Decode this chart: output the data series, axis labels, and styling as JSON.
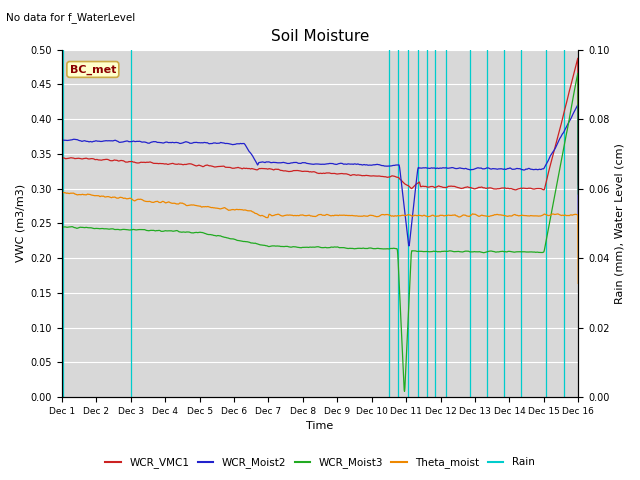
{
  "title": "Soil Moisture",
  "top_left_text": "No data for f_WaterLevel",
  "xlabel": "Time",
  "ylabel_left": "VWC (m3/m3)",
  "ylabel_right": "Rain (mm), Water Level (cm)",
  "ylim_left": [
    0.0,
    0.5
  ],
  "ylim_right": [
    0.0,
    0.1
  ],
  "yticks_left": [
    0.0,
    0.05,
    0.1,
    0.15,
    0.2,
    0.25,
    0.3,
    0.35,
    0.4,
    0.45,
    0.5
  ],
  "yticks_right": [
    0.0,
    0.02,
    0.04,
    0.06,
    0.08,
    0.1
  ],
  "xtick_labels": [
    "Dec 1",
    "Dec 2",
    "Dec 3",
    "Dec 4",
    "Dec 5",
    "Dec 6",
    "Dec 7",
    "Dec 8",
    "Dec 9",
    "Dec 10",
    "Dec 11",
    "Dec 12",
    "Dec 13",
    "Dec 14",
    "Dec 15",
    "Dec 16"
  ],
  "box_label": "BC_met",
  "box_color": "#ffffcc",
  "box_border": "#ccaa44",
  "line_colors": {
    "WCR_VMC1": "#cc2222",
    "WCR_Moist2": "#2222cc",
    "WCR_Moist3": "#22aa22",
    "Theta_moist": "#ee8800",
    "Rain": "#00cccc"
  },
  "background_color": "#d8d8d8",
  "rain_vlines_x": [
    0.02,
    2.0,
    9.5,
    9.75,
    10.05,
    10.35,
    10.6,
    10.85,
    11.15,
    11.85,
    12.35,
    12.85,
    13.35,
    14.05,
    14.6
  ],
  "n_points": 3600,
  "figsize": [
    6.4,
    4.8
  ],
  "dpi": 100
}
